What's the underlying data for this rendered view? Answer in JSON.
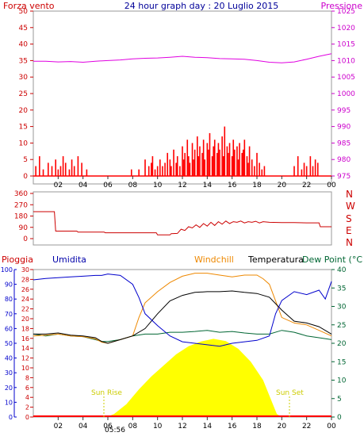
{
  "chart_data": [
    {
      "type": "bar+line",
      "title": "24 hour graph day : 20 Luglio 2015",
      "left_label": "Forza vento",
      "right_label": "Pressione",
      "left_ticks": [
        0,
        5,
        10,
        15,
        20,
        25,
        30,
        35,
        40,
        45,
        50
      ],
      "right_ticks": [
        975,
        980,
        985,
        990,
        995,
        1000,
        1005,
        1010,
        1015,
        1020,
        1025
      ],
      "ylim_left": [
        0,
        50
      ],
      "ylim_right": [
        975,
        1025
      ],
      "x_ticks": [
        "02",
        "04",
        "06",
        "08",
        "10",
        "12",
        "14",
        "16",
        "18",
        "20",
        "22",
        "00"
      ],
      "wind_bars": {
        "x": [
          0.2,
          0.5,
          0.8,
          1.2,
          1.5,
          1.8,
          2.0,
          2.2,
          2.4,
          2.6,
          2.9,
          3.1,
          3.3,
          3.6,
          3.9,
          4.3,
          7.9,
          8.5,
          9.0,
          9.3,
          9.5,
          9.6,
          9.8,
          10.0,
          10.2,
          10.4,
          10.6,
          10.8,
          11.0,
          11.1,
          11.3,
          11.5,
          11.6,
          11.8,
          12.0,
          12.1,
          12.2,
          12.4,
          12.5,
          12.6,
          12.8,
          12.9,
          13.0,
          13.2,
          13.3,
          13.4,
          13.6,
          13.7,
          13.8,
          14.0,
          14.1,
          14.2,
          14.4,
          14.5,
          14.6,
          14.8,
          14.9,
          15.0,
          15.2,
          15.3,
          15.4,
          15.6,
          15.7,
          15.8,
          16.0,
          16.1,
          16.2,
          16.4,
          16.5,
          16.6,
          16.8,
          16.9,
          17.0,
          17.2,
          17.3,
          17.4,
          17.6,
          17.8,
          18.0,
          18.2,
          18.4,
          18.6,
          21.0,
          21.3,
          21.6,
          21.8,
          22.0,
          22.3,
          22.5,
          22.7,
          22.9
        ],
        "y": [
          3,
          6,
          2,
          4,
          3,
          5,
          2,
          3,
          6,
          4,
          2,
          5,
          3,
          6,
          4,
          2,
          2,
          2,
          5,
          3,
          4,
          6,
          2,
          3,
          5,
          3,
          4,
          7,
          5,
          3,
          8,
          4,
          6,
          3,
          9,
          5,
          7,
          11,
          6,
          4,
          10,
          5,
          8,
          12,
          6,
          9,
          7,
          11,
          5,
          10,
          8,
          13,
          6,
          9,
          11,
          7,
          10,
          8,
          12,
          6,
          15,
          9,
          7,
          10,
          6,
          11,
          8,
          9,
          5,
          10,
          7,
          8,
          11,
          6,
          4,
          9,
          5,
          3,
          7,
          4,
          2,
          3,
          3,
          6,
          2,
          4,
          3,
          6,
          3,
          5,
          4
        ],
        "color": "#ff0000"
      },
      "pressure": {
        "x": [
          0,
          1,
          2,
          3,
          4,
          5,
          6,
          7,
          8,
          9,
          10,
          11,
          12,
          13,
          14,
          15,
          16,
          17,
          18,
          19,
          20,
          21,
          22,
          23,
          24
        ],
        "y": [
          1009.8,
          1009.8,
          1009.6,
          1009.7,
          1009.5,
          1009.8,
          1010.0,
          1010.2,
          1010.5,
          1010.7,
          1010.8,
          1011.0,
          1011.3,
          1011.0,
          1010.9,
          1010.6,
          1010.5,
          1010.4,
          1010.0,
          1009.5,
          1009.3,
          1009.6,
          1010.4,
          1011.3,
          1012.1
        ],
        "color": "#e000e0"
      }
    },
    {
      "type": "line",
      "left_ticks": [
        0,
        90,
        180,
        270,
        360
      ],
      "right_labels": [
        "N",
        "W",
        "S",
        "E",
        "N"
      ],
      "ylim": [
        0,
        360
      ],
      "x_ticks": [
        "02",
        "04",
        "06",
        "08",
        "10",
        "12",
        "14",
        "16",
        "18",
        "20",
        "22",
        "00"
      ],
      "direction": {
        "x": [
          0,
          1.7,
          1.8,
          3.5,
          3.6,
          5.7,
          5.8,
          9.9,
          10.0,
          11.0,
          11.1,
          11.6,
          11.9,
          12.2,
          12.5,
          12.8,
          13.1,
          13.4,
          13.7,
          14.0,
          14.3,
          14.6,
          14.9,
          15.2,
          15.5,
          15.8,
          16.1,
          16.4,
          16.7,
          17.0,
          17.3,
          17.6,
          17.9,
          18.2,
          18.5,
          19.0,
          20,
          21,
          22,
          23,
          23.1,
          24
        ],
        "y": [
          215,
          215,
          60,
          60,
          52,
          52,
          47,
          47,
          30,
          30,
          40,
          42,
          75,
          65,
          95,
          85,
          110,
          90,
          120,
          100,
          130,
          105,
          135,
          115,
          140,
          120,
          135,
          130,
          140,
          125,
          135,
          130,
          138,
          125,
          135,
          130,
          128,
          128,
          126,
          126,
          95,
          95
        ],
        "color": "#cc0000"
      }
    },
    {
      "type": "line+area",
      "labels": {
        "rain": "Pioggia",
        "humidity": "Umidita",
        "windchill": "Windchill",
        "temperature": "Temperatura",
        "dewpoint": "Dew Point (°C"
      },
      "annotations": [
        "Sun Rise",
        "Sun Set",
        "05:56"
      ],
      "rain_ticks": [
        0,
        2,
        4,
        6,
        8,
        10,
        12,
        14,
        16,
        18,
        20,
        22,
        24,
        26,
        28,
        30
      ],
      "humidity_ticks": [
        0,
        10,
        20,
        30,
        40,
        50,
        60,
        70,
        80,
        90,
        100
      ],
      "temp_ticks": [
        0,
        5,
        10,
        15,
        20,
        25,
        30,
        35,
        40
      ],
      "ylim_temp": [
        0,
        40
      ],
      "ylim_humidity": [
        0,
        100
      ],
      "x_ticks": [
        "02",
        "04",
        "06",
        "08",
        "10",
        "12",
        "14",
        "16",
        "18",
        "20",
        "22",
        "00"
      ],
      "sun_time": "05:56",
      "solar": {
        "x": [
          0,
          5.9,
          6.5,
          7.5,
          8.5,
          9.5,
          10.5,
          11.5,
          12.5,
          13.5,
          14.5,
          15.5,
          16.5,
          17.5,
          18.5,
          19.1,
          19.6,
          20,
          24
        ],
        "y": [
          0,
          0,
          0.8,
          3.5,
          7.5,
          11,
          14,
          17,
          19.2,
          20.5,
          21.2,
          20.6,
          18.5,
          15,
          10,
          5,
          0.8,
          0,
          0
        ],
        "color": "#ffff00"
      },
      "temperature": {
        "x": [
          0,
          1,
          2,
          3,
          4,
          5,
          5.5,
          6,
          7,
          8,
          9,
          10,
          11,
          12,
          13,
          14,
          15,
          16,
          17,
          18,
          19,
          20,
          21,
          22,
          23,
          24
        ],
        "y": [
          22.5,
          22.5,
          22.8,
          22.2,
          22,
          21.5,
          20.5,
          20,
          21,
          22,
          24,
          28,
          31.5,
          33,
          33.8,
          34,
          34,
          34.2,
          33.8,
          33.5,
          32.5,
          29,
          26,
          25.5,
          24.5,
          22.5
        ],
        "color": "#000000"
      },
      "windchill": {
        "x": [
          0,
          1,
          2,
          3,
          4,
          5,
          5.5,
          6,
          7,
          8,
          8.5,
          9,
          10,
          11,
          12,
          13,
          14,
          15,
          16,
          17,
          18,
          18.5,
          19,
          20,
          21,
          22,
          23,
          24
        ],
        "y": [
          22,
          22.2,
          22.5,
          22,
          21.8,
          21.2,
          20.3,
          20,
          21,
          22,
          27,
          31,
          34,
          36.5,
          38.2,
          39,
          39,
          38.5,
          38,
          38.5,
          38.5,
          37.5,
          36,
          27,
          25.5,
          25,
          23.5,
          22
        ],
        "color": "#ee8800"
      },
      "dewpoint": {
        "x": [
          0,
          1,
          2,
          3,
          4,
          5,
          5.5,
          6,
          7,
          8,
          9,
          10,
          11,
          12,
          13,
          14,
          15,
          16,
          17,
          18,
          19,
          20,
          21,
          22,
          23,
          24
        ],
        "y": [
          22.5,
          22,
          22.5,
          22,
          21.8,
          21,
          20.5,
          20.5,
          21,
          22,
          22.5,
          22.5,
          23,
          23,
          23.2,
          23.5,
          23,
          23.2,
          22.8,
          22.5,
          22.5,
          23.5,
          23,
          22,
          21.5,
          21
        ],
        "color": "#006633"
      },
      "humidity": {
        "x": [
          0,
          1,
          2,
          3,
          4,
          5,
          5.5,
          6,
          7,
          8,
          8.5,
          9,
          10,
          11,
          12,
          13,
          14,
          15,
          16,
          17,
          18,
          19,
          19.5,
          20,
          21,
          22,
          23,
          23.5,
          24
        ],
        "y": [
          93,
          94,
          94.5,
          95,
          95.5,
          96,
          96,
          97,
          96,
          90,
          81,
          70,
          62,
          55,
          51,
          50,
          49,
          48,
          50,
          51,
          52,
          55,
          70,
          79,
          85,
          83,
          86,
          80,
          92
        ],
        "color": "#0000cc"
      },
      "rain": {
        "x": [
          0,
          24
        ],
        "y": [
          0,
          0
        ],
        "color": "#ff0000"
      }
    }
  ]
}
